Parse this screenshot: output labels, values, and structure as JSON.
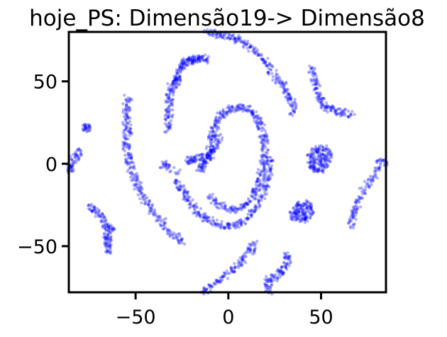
{
  "chart_data": {
    "type": "scatter",
    "title": "hoje_PS: Dimensão19-> Dimensão8",
    "xlabel": "",
    "ylabel": "",
    "xlim": [
      -86,
      85
    ],
    "ylim": [
      -78,
      80
    ],
    "x_ticks": [
      {
        "value": -50,
        "label": "−50"
      },
      {
        "value": 0,
        "label": "0"
      },
      {
        "value": 50,
        "label": "50"
      }
    ],
    "y_ticks": [
      {
        "value": 50,
        "label": "50"
      },
      {
        "value": 0,
        "label": "0"
      },
      {
        "value": -50,
        "label": "−50"
      }
    ],
    "grid": false,
    "legend": "none",
    "point_color": "#0000ff",
    "point_alpha": 0.3,
    "series": [
      {
        "points": [
          [
            -12,
            80
          ],
          [
            -8,
            79
          ],
          [
            -4,
            78
          ],
          [
            0,
            77
          ],
          [
            4,
            76
          ],
          [
            8,
            74
          ],
          [
            12,
            71
          ],
          [
            16,
            67
          ],
          [
            20,
            62
          ],
          [
            23,
            57
          ],
          [
            26,
            52
          ],
          [
            29,
            48
          ],
          [
            31,
            44
          ],
          [
            33,
            40
          ],
          [
            35,
            36
          ],
          [
            33,
            30
          ]
        ]
      },
      {
        "points": [
          [
            -28,
            47
          ],
          [
            -28,
            51
          ],
          [
            -27,
            55
          ],
          [
            -25,
            59
          ],
          [
            -24,
            61
          ],
          [
            -22,
            62
          ],
          [
            -20,
            63
          ],
          [
            -18,
            63
          ],
          [
            -16,
            64
          ],
          [
            -14,
            64
          ],
          [
            -12,
            63
          ]
        ]
      },
      {
        "points": [
          [
            -33,
            20
          ],
          [
            -32,
            25
          ],
          [
            -32,
            30
          ],
          [
            -32,
            35
          ],
          [
            -32,
            40
          ],
          [
            -31,
            45
          ],
          [
            -30,
            49
          ],
          [
            -28,
            52
          ]
        ]
      },
      {
        "points": [
          [
            -54,
            40
          ],
          [
            -55,
            35
          ],
          [
            -55,
            30
          ],
          [
            -55,
            25
          ],
          [
            -54,
            20
          ],
          [
            -55,
            15
          ],
          [
            -55,
            10
          ],
          [
            -54,
            5
          ],
          [
            -53,
            0
          ],
          [
            -52,
            -5
          ],
          [
            -50,
            -10
          ],
          [
            -48,
            -15
          ],
          [
            -46,
            -20
          ],
          [
            -43,
            -25
          ],
          [
            -40,
            -30
          ],
          [
            -36,
            -35
          ],
          [
            -32,
            -40
          ],
          [
            -28,
            -44
          ],
          [
            -25,
            -48
          ]
        ]
      },
      {
        "points": [
          [
            -10,
            -20
          ],
          [
            -6,
            -24
          ],
          [
            -2,
            -27
          ],
          [
            2,
            -28
          ],
          [
            6,
            -27
          ],
          [
            10,
            -24
          ],
          [
            13,
            -20
          ],
          [
            15,
            -15
          ],
          [
            17,
            -10
          ],
          [
            18,
            -5
          ],
          [
            19,
            0
          ],
          [
            20,
            5
          ],
          [
            20,
            10
          ],
          [
            19,
            15
          ],
          [
            18,
            20
          ],
          [
            17,
            25
          ],
          [
            15,
            29
          ],
          [
            12,
            32
          ],
          [
            9,
            34
          ],
          [
            5,
            34
          ],
          [
            1,
            33
          ],
          [
            -2,
            31
          ],
          [
            -5,
            28
          ],
          [
            -7,
            24
          ],
          [
            -8,
            20
          ],
          [
            -9,
            15
          ],
          [
            -10,
            10
          ],
          [
            -11,
            5
          ],
          [
            -12,
            1
          ],
          [
            -14,
            -2
          ],
          [
            -16,
            -4
          ]
        ]
      },
      {
        "points": [
          [
            -28,
            -10
          ],
          [
            -26,
            -14
          ],
          [
            -24,
            -18
          ],
          [
            -22,
            -22
          ],
          [
            -19,
            -26
          ],
          [
            -16,
            -30
          ],
          [
            -12,
            -33
          ],
          [
            -8,
            -35
          ],
          [
            -4,
            -37
          ],
          [
            0,
            -38
          ],
          [
            4,
            -37
          ],
          [
            8,
            -35
          ],
          [
            12,
            -31
          ],
          [
            15,
            -26
          ],
          [
            18,
            -20
          ],
          [
            20,
            -14
          ],
          [
            21,
            -8
          ],
          [
            22,
            -2
          ],
          [
            22,
            4
          ]
        ]
      },
      {
        "points": [
          [
            -10,
            3
          ],
          [
            -14,
            4
          ],
          [
            -18,
            3
          ],
          [
            -20,
            2
          ],
          [
            -23,
            2
          ]
        ]
      },
      {
        "points": [
          [
            -5,
            17
          ],
          [
            -6,
            12
          ],
          [
            -8,
            8
          ],
          [
            -10,
            5
          ]
        ]
      },
      {
        "points": [
          [
            45,
            58
          ],
          [
            46,
            53
          ],
          [
            47,
            48
          ],
          [
            48,
            43
          ],
          [
            50,
            38
          ],
          [
            52,
            35
          ],
          [
            55,
            33
          ],
          [
            58,
            32
          ],
          [
            62,
            31
          ],
          [
            66,
            30
          ]
        ]
      },
      {
        "points": [
          [
            44,
            3
          ],
          [
            46,
            7
          ],
          [
            48,
            9
          ],
          [
            52,
            9
          ],
          [
            54,
            6
          ],
          [
            54,
            2
          ],
          [
            52,
            -2
          ],
          [
            49,
            -4
          ],
          [
            46,
            -3
          ],
          [
            44,
            0
          ],
          [
            48,
            3
          ],
          [
            50,
            5
          ],
          [
            50,
            0
          ]
        ]
      },
      {
        "points": [
          [
            36,
            -28
          ],
          [
            38,
            -25
          ],
          [
            41,
            -24
          ],
          [
            44,
            -26
          ],
          [
            44,
            -30
          ],
          [
            42,
            -33
          ],
          [
            39,
            -34
          ],
          [
            36,
            -32
          ],
          [
            35,
            -30
          ],
          [
            40,
            -29
          ],
          [
            40,
            -30
          ]
        ]
      },
      {
        "points": [
          [
            84,
            -1
          ],
          [
            82,
            3
          ],
          [
            80,
            -4
          ],
          [
            77,
            -10
          ],
          [
            73,
            -16
          ],
          [
            70,
            -22
          ],
          [
            68,
            -28
          ],
          [
            67,
            -33
          ],
          [
            66,
            -38
          ]
        ]
      },
      {
        "points": [
          [
            -75,
            -25
          ],
          [
            -72,
            -28
          ],
          [
            -69,
            -31
          ],
          [
            -67,
            -35
          ],
          [
            -66,
            -40
          ],
          [
            -65,
            -45
          ],
          [
            -65,
            -50
          ],
          [
            -65,
            -53
          ],
          [
            -64,
            -39
          ],
          [
            -62,
            -39
          ]
        ]
      },
      {
        "points": [
          [
            -75,
            21
          ],
          [
            -77,
            22
          ],
          [
            -75,
            23
          ]
        ]
      },
      {
        "points": [
          [
            -80,
            8
          ],
          [
            -82,
            5
          ],
          [
            -84,
            2
          ],
          [
            -85,
            -2
          ],
          [
            -86,
            -5
          ]
        ]
      },
      {
        "points": [
          [
            -35,
            0
          ],
          [
            -34,
            -1
          ],
          [
            -27,
            -6
          ]
        ]
      },
      {
        "points": [
          [
            14,
            -48
          ],
          [
            12,
            -52
          ],
          [
            9,
            -56
          ],
          [
            6,
            -60
          ],
          [
            2,
            -64
          ],
          [
            -2,
            -68
          ],
          [
            -6,
            -72
          ],
          [
            -10,
            -75
          ],
          [
            -14,
            -78
          ]
        ]
      },
      {
        "points": [
          [
            32,
            -54
          ],
          [
            32,
            -58
          ],
          [
            31,
            -62
          ],
          [
            28,
            -66
          ],
          [
            25,
            -69
          ],
          [
            22,
            -70
          ],
          [
            21,
            -74
          ],
          [
            22,
            -78
          ]
        ]
      }
    ]
  }
}
